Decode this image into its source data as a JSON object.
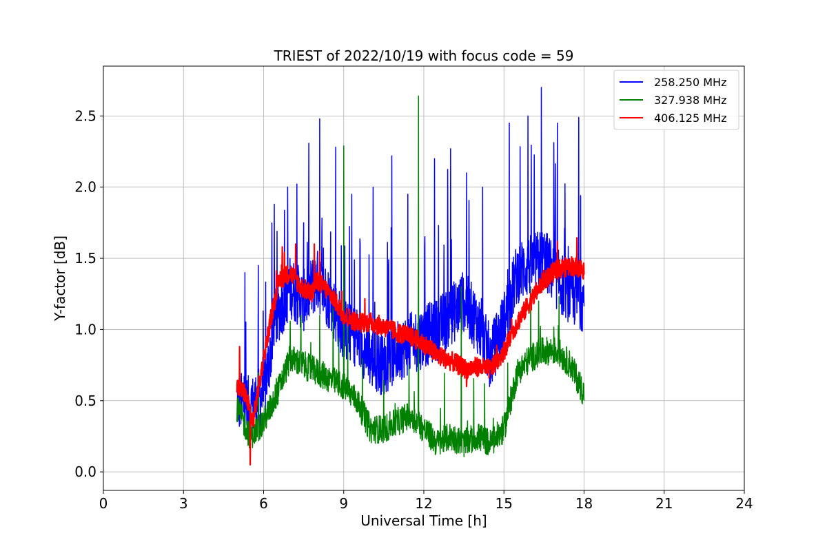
{
  "chart_data": {
    "type": "line",
    "title": "TRIEST of 2022/10/19 with focus code = 59",
    "xlabel": "Universal Time [h]",
    "ylabel": "Y-factor [dB]",
    "xlim": [
      0,
      24
    ],
    "ylim": [
      -0.13,
      2.85
    ],
    "x_ticks": [
      0,
      3,
      6,
      9,
      12,
      15,
      18,
      21,
      24
    ],
    "x_tick_labels": [
      "0",
      "3",
      "6",
      "9",
      "12",
      "15",
      "18",
      "21",
      "24"
    ],
    "y_ticks": [
      0.0,
      0.5,
      1.0,
      1.5,
      2.0,
      2.5
    ],
    "y_tick_labels": [
      "0.0",
      "0.5",
      "1.0",
      "1.5",
      "2.0",
      "2.5"
    ],
    "grid": true,
    "legend_position": "top-right",
    "series": [
      {
        "name": "258.250 MHz",
        "color": "#0000ff",
        "x": [
          5.0,
          5.5,
          6.0,
          6.5,
          7.0,
          7.5,
          8.0,
          8.5,
          9.0,
          9.5,
          10.0,
          10.5,
          11.0,
          11.5,
          12.0,
          12.5,
          13.0,
          13.5,
          14.0,
          14.5,
          15.0,
          15.5,
          16.0,
          16.5,
          17.0,
          17.5,
          18.0
        ],
        "y": [
          0.5,
          0.45,
          0.55,
          1.1,
          1.3,
          1.2,
          1.35,
          1.2,
          1.0,
          0.95,
          0.8,
          0.75,
          0.85,
          0.9,
          0.95,
          1.0,
          1.1,
          1.2,
          1.05,
          0.8,
          1.05,
          1.4,
          1.45,
          1.5,
          1.35,
          1.25,
          1.2
        ],
        "peaks": [
          [
            5.3,
            1.4
          ],
          [
            5.8,
            1.45
          ],
          [
            6.4,
            1.88
          ],
          [
            6.9,
            2.0
          ],
          [
            7.5,
            1.75
          ],
          [
            8.1,
            2.48
          ],
          [
            8.7,
            2.28
          ],
          [
            9.3,
            1.95
          ],
          [
            10.1,
            2.0
          ],
          [
            10.8,
            2.22
          ],
          [
            11.4,
            1.95
          ],
          [
            12.4,
            2.2
          ],
          [
            13.0,
            2.27
          ],
          [
            13.6,
            2.1
          ],
          [
            14.2,
            2.0
          ],
          [
            15.2,
            2.45
          ],
          [
            15.9,
            2.5
          ],
          [
            16.4,
            2.7
          ],
          [
            17.0,
            2.45
          ],
          [
            17.8,
            2.49
          ]
        ]
      },
      {
        "name": "327.938 MHz",
        "color": "#008000",
        "x": [
          5.0,
          5.5,
          6.0,
          6.5,
          7.0,
          7.5,
          8.0,
          8.5,
          9.0,
          9.5,
          10.0,
          10.5,
          11.0,
          11.5,
          12.0,
          12.5,
          13.0,
          13.5,
          14.0,
          14.5,
          15.0,
          15.5,
          16.0,
          16.5,
          17.0,
          17.5,
          18.0
        ],
        "y": [
          0.45,
          0.25,
          0.35,
          0.55,
          0.8,
          0.75,
          0.7,
          0.65,
          0.6,
          0.5,
          0.3,
          0.3,
          0.35,
          0.4,
          0.3,
          0.2,
          0.25,
          0.2,
          0.25,
          0.2,
          0.3,
          0.7,
          0.8,
          0.85,
          0.85,
          0.75,
          0.55
        ],
        "peaks": [
          [
            8.1,
            1.1
          ],
          [
            8.6,
            1.15
          ],
          [
            9.0,
            2.29
          ],
          [
            11.8,
            2.64
          ],
          [
            13.4,
            1.3
          ],
          [
            16.0,
            1.3
          ],
          [
            16.3,
            1.2
          ],
          [
            7.4,
            1.1
          ]
        ]
      },
      {
        "name": "406.125 MHz",
        "color": "#ff0000",
        "x": [
          5.0,
          5.3,
          5.6,
          6.0,
          6.3,
          6.6,
          7.0,
          7.4,
          7.8,
          8.0,
          8.5,
          9.0,
          9.5,
          10.0,
          10.5,
          11.0,
          11.5,
          12.0,
          12.5,
          13.0,
          13.3,
          13.6,
          14.0,
          14.5,
          15.0,
          15.5,
          16.0,
          16.5,
          17.0,
          17.5,
          18.0
        ],
        "y": [
          0.6,
          0.55,
          0.35,
          0.8,
          1.1,
          1.35,
          1.4,
          1.3,
          1.25,
          1.35,
          1.25,
          1.1,
          1.05,
          1.05,
          1.02,
          0.98,
          0.95,
          0.9,
          0.82,
          0.78,
          0.75,
          0.72,
          0.74,
          0.72,
          0.85,
          1.05,
          1.2,
          1.35,
          1.42,
          1.45,
          1.42
        ],
        "peaks": [
          [
            5.5,
            0.05
          ],
          [
            5.1,
            0.88
          ],
          [
            6.7,
            1.58
          ],
          [
            7.2,
            1.6
          ],
          [
            7.9,
            1.6
          ],
          [
            8.1,
            1.55
          ],
          [
            13.6,
            0.6
          ],
          [
            17.0,
            1.62
          ]
        ]
      }
    ]
  }
}
